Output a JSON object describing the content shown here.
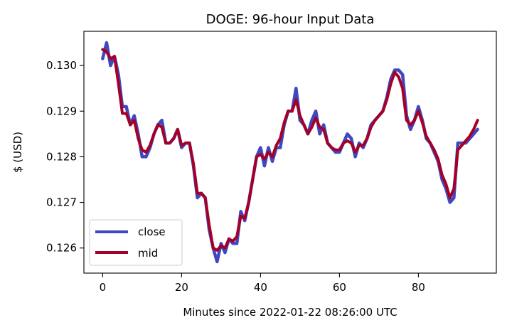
{
  "chart_data": {
    "type": "line",
    "title": "DOGE: 96-hour Input Data",
    "xlabel": "Minutes since 2022-01-22 08:26:00 UTC",
    "ylabel": "$ (USD)",
    "xlim": [
      -4.75,
      99.75
    ],
    "ylim": [
      0.12545,
      0.13075
    ],
    "xticks": [
      0,
      20,
      40,
      60,
      80
    ],
    "xtick_labels": [
      "0",
      "20",
      "40",
      "60",
      "80"
    ],
    "yticks": [
      0.126,
      0.127,
      0.128,
      0.129,
      0.13
    ],
    "ytick_labels": [
      "0.126",
      "0.127",
      "0.128",
      "0.129",
      "0.130"
    ],
    "legend_position": "lower-left",
    "grid": false,
    "x": [
      0,
      1,
      2,
      3,
      4,
      5,
      6,
      7,
      8,
      9,
      10,
      11,
      12,
      13,
      14,
      15,
      16,
      17,
      18,
      19,
      20,
      21,
      22,
      23,
      24,
      25,
      26,
      27,
      28,
      29,
      30,
      31,
      32,
      33,
      34,
      35,
      36,
      37,
      38,
      39,
      40,
      41,
      42,
      43,
      44,
      45,
      46,
      47,
      48,
      49,
      50,
      51,
      52,
      53,
      54,
      55,
      56,
      57,
      58,
      59,
      60,
      61,
      62,
      63,
      64,
      65,
      66,
      67,
      68,
      69,
      70,
      71,
      72,
      73,
      74,
      75,
      76,
      77,
      78,
      79,
      80,
      81,
      82,
      83,
      84,
      85,
      86,
      87,
      88,
      89,
      90,
      91,
      92,
      93,
      94,
      95
    ],
    "series": [
      {
        "name": "close",
        "color": "#3f48c1",
        "values": [
          0.13015,
          0.1305,
          0.13,
          0.1302,
          0.1298,
          0.1291,
          0.1291,
          0.1287,
          0.1289,
          0.1285,
          0.128,
          0.128,
          0.1282,
          0.1285,
          0.1287,
          0.1288,
          0.1283,
          0.1283,
          0.1284,
          0.1286,
          0.1282,
          0.1283,
          0.1283,
          0.1278,
          0.1271,
          0.1272,
          0.1271,
          0.1264,
          0.126,
          0.1257,
          0.1261,
          0.1259,
          0.1262,
          0.1261,
          0.1261,
          0.1268,
          0.1266,
          0.127,
          0.1275,
          0.128,
          0.1282,
          0.1278,
          0.1282,
          0.1279,
          0.1282,
          0.1282,
          0.1287,
          0.129,
          0.129,
          0.1295,
          0.1288,
          0.1287,
          0.1285,
          0.1288,
          0.129,
          0.1285,
          0.1287,
          0.1283,
          0.1282,
          0.1281,
          0.1281,
          0.1283,
          0.1285,
          0.1284,
          0.128,
          0.1283,
          0.1282,
          0.1284,
          0.1287,
          0.1288,
          0.1289,
          0.129,
          0.1293,
          0.1297,
          0.1299,
          0.1299,
          0.1298,
          0.1289,
          0.1286,
          0.1288,
          0.1291,
          0.1288,
          0.1284,
          0.1283,
          0.1281,
          0.1279,
          0.1275,
          0.1273,
          0.127,
          0.1271,
          0.1283,
          0.1283,
          0.1283,
          0.1284,
          0.1285,
          0.1286
        ]
      },
      {
        "name": "mid",
        "color": "#a50026",
        "values": [
          0.13035,
          0.1303,
          0.13015,
          0.1302,
          0.1296,
          0.12895,
          0.12895,
          0.1287,
          0.1288,
          0.1284,
          0.12815,
          0.1281,
          0.12825,
          0.1285,
          0.1287,
          0.12865,
          0.1283,
          0.1283,
          0.1284,
          0.1286,
          0.12825,
          0.1283,
          0.1283,
          0.12785,
          0.1272,
          0.1272,
          0.1271,
          0.1265,
          0.126,
          0.12595,
          0.12605,
          0.126,
          0.1262,
          0.12615,
          0.12625,
          0.1267,
          0.12665,
          0.127,
          0.1275,
          0.128,
          0.12805,
          0.12795,
          0.1281,
          0.128,
          0.12825,
          0.1284,
          0.12875,
          0.129,
          0.129,
          0.12925,
          0.1289,
          0.1287,
          0.1285,
          0.12865,
          0.12885,
          0.12865,
          0.1286,
          0.1283,
          0.1282,
          0.12815,
          0.12815,
          0.1283,
          0.12835,
          0.1283,
          0.1281,
          0.12825,
          0.12825,
          0.1284,
          0.12865,
          0.1288,
          0.1289,
          0.129,
          0.12925,
          0.1296,
          0.12985,
          0.12975,
          0.1295,
          0.1288,
          0.1287,
          0.1288,
          0.129,
          0.12875,
          0.12845,
          0.1283,
          0.12815,
          0.12795,
          0.1276,
          0.1274,
          0.1271,
          0.1273,
          0.12815,
          0.12825,
          0.12835,
          0.12845,
          0.1286,
          0.1288
        ]
      }
    ]
  }
}
